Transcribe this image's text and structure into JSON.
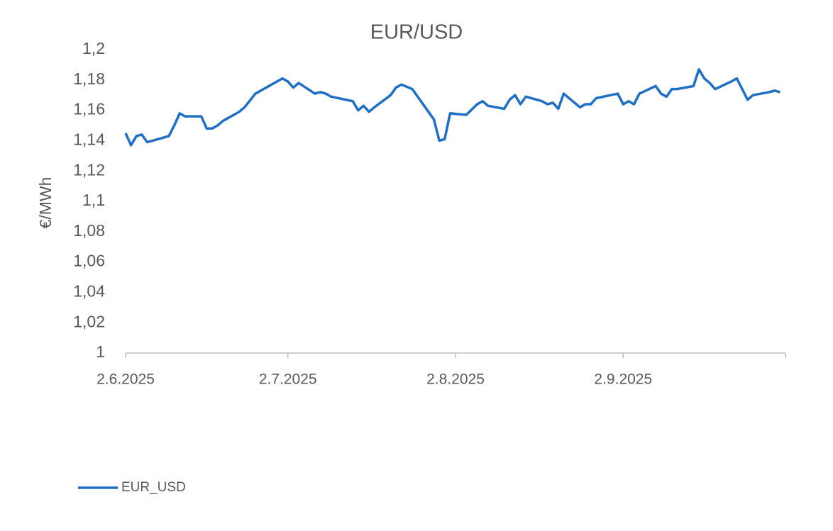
{
  "chart_data": {
    "type": "line",
    "title": "EUR/USD",
    "y_label": "€/MWh",
    "x": [
      "2025-06-02",
      "2025-06-03",
      "2025-06-04",
      "2025-06-05",
      "2025-06-06",
      "2025-06-10",
      "2025-06-11",
      "2025-06-12",
      "2025-06-13",
      "2025-06-16",
      "2025-06-17",
      "2025-06-18",
      "2025-06-19",
      "2025-06-20",
      "2025-06-23",
      "2025-06-24",
      "2025-06-26",
      "2025-07-01",
      "2025-07-02",
      "2025-07-03",
      "2025-07-04",
      "2025-07-07",
      "2025-07-08",
      "2025-07-09",
      "2025-07-10",
      "2025-07-14",
      "2025-07-15",
      "2025-07-16",
      "2025-07-17",
      "2025-07-18",
      "2025-07-21",
      "2025-07-22",
      "2025-07-23",
      "2025-07-25",
      "2025-07-29",
      "2025-07-30",
      "2025-07-31",
      "2025-08-01",
      "2025-08-04",
      "2025-08-06",
      "2025-08-07",
      "2025-08-08",
      "2025-08-11",
      "2025-08-12",
      "2025-08-13",
      "2025-08-14",
      "2025-08-15",
      "2025-08-18",
      "2025-08-19",
      "2025-08-20",
      "2025-08-21",
      "2025-08-22",
      "2025-08-25",
      "2025-08-26",
      "2025-08-27",
      "2025-08-28",
      "2025-09-01",
      "2025-09-02",
      "2025-09-03",
      "2025-09-04",
      "2025-09-05",
      "2025-09-08",
      "2025-09-09",
      "2025-09-10",
      "2025-09-11",
      "2025-09-12",
      "2025-09-15",
      "2025-09-16",
      "2025-09-17",
      "2025-09-18",
      "2025-09-19",
      "2025-09-22",
      "2025-09-23",
      "2025-09-24",
      "2025-09-25",
      "2025-09-26",
      "2025-09-29",
      "2025-09-30",
      "2025-10-01"
    ],
    "series": [
      {
        "name": "EUR_USD",
        "color": "#1f6fc6",
        "values": [
          1.145,
          1.137,
          1.143,
          1.144,
          1.139,
          1.143,
          1.15,
          1.158,
          1.156,
          1.156,
          1.148,
          1.148,
          1.15,
          1.153,
          1.159,
          1.162,
          1.171,
          1.181,
          1.179,
          1.175,
          1.178,
          1.171,
          1.172,
          1.171,
          1.169,
          1.166,
          1.16,
          1.163,
          1.159,
          1.162,
          1.17,
          1.175,
          1.177,
          1.174,
          1.154,
          1.14,
          1.141,
          1.158,
          1.157,
          1.164,
          1.166,
          1.163,
          1.161,
          1.167,
          1.17,
          1.164,
          1.169,
          1.166,
          1.164,
          1.165,
          1.161,
          1.171,
          1.162,
          1.164,
          1.164,
          1.168,
          1.171,
          1.164,
          1.166,
          1.164,
          1.171,
          1.176,
          1.171,
          1.169,
          1.174,
          1.174,
          1.176,
          1.187,
          1.181,
          1.178,
          1.174,
          1.179,
          1.181,
          1.174,
          1.167,
          1.17,
          1.172,
          1.173,
          1.172
        ]
      }
    ],
    "xlim": [
      "2025-06-02",
      "2025-10-02"
    ],
    "xticks": [
      {
        "value": "2025-06-02",
        "label": "2.6.2025"
      },
      {
        "value": "2025-07-02",
        "label": "2.7.2025"
      },
      {
        "value": "2025-08-02",
        "label": "2.8.2025"
      },
      {
        "value": "2025-09-02",
        "label": "2.9.2025"
      }
    ],
    "ylim": [
      1,
      1.2
    ],
    "yticks": [
      1,
      {
        "value": 1.02,
        "label": "1,02"
      },
      {
        "value": 1.04,
        "label": "1,04"
      },
      {
        "value": 1.06,
        "label": "1,06"
      },
      {
        "value": 1.08,
        "label": "1,08"
      },
      {
        "value": 1.1,
        "label": "1,1"
      },
      {
        "value": 1.12,
        "label": "1,12"
      },
      {
        "value": 1.14,
        "label": "1,14"
      },
      {
        "value": 1.16,
        "label": "1,16"
      },
      {
        "value": 1.18,
        "label": "1,18"
      },
      {
        "value": 1.2,
        "label": "1,2"
      }
    ],
    "grid": false,
    "legend": "bottom-left"
  }
}
